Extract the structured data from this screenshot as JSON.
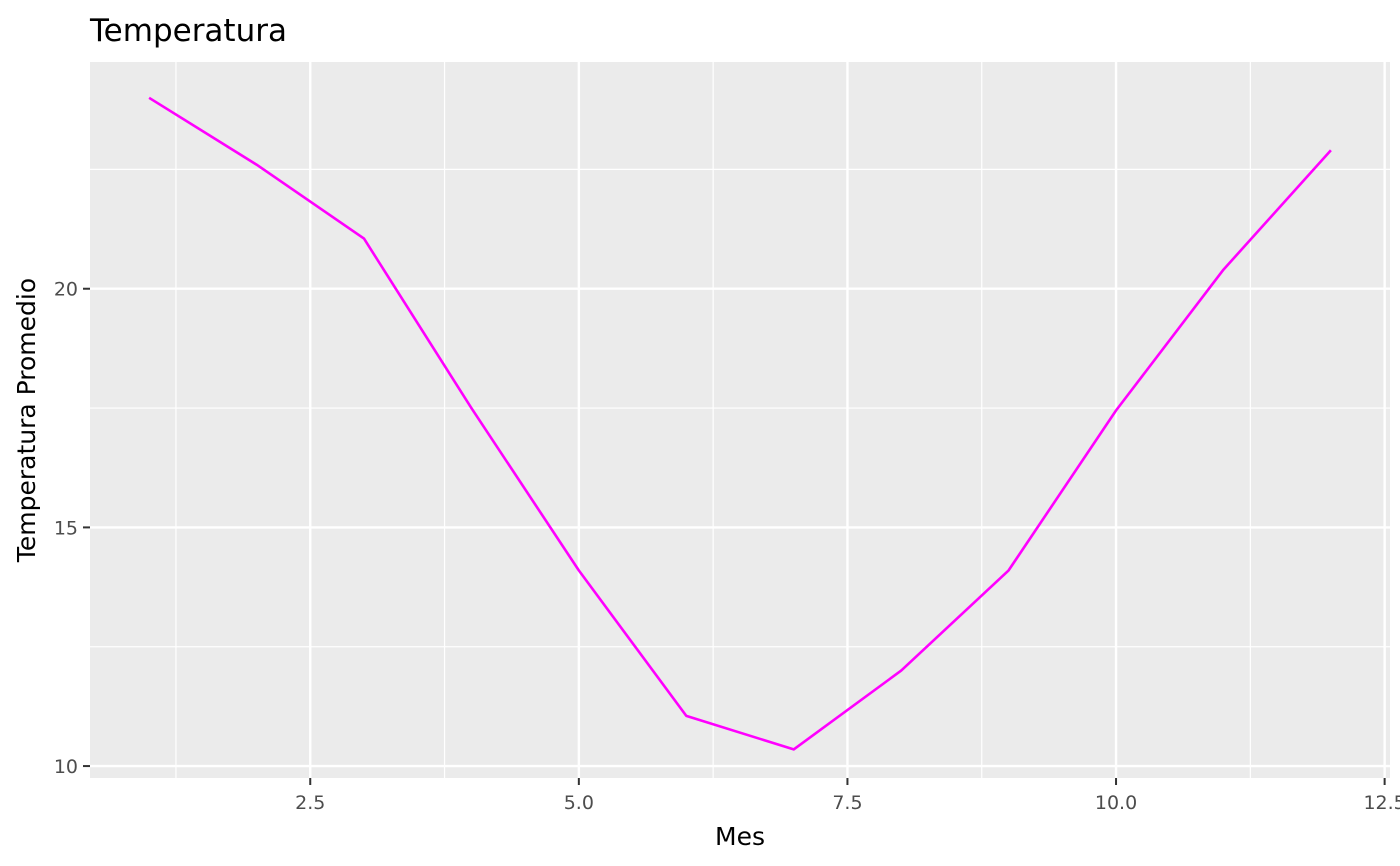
{
  "chart_data": {
    "type": "line",
    "title": "Temperatura",
    "xlabel": "Mes",
    "ylabel": "Temperatura Promedio",
    "x": [
      1,
      2,
      3,
      4,
      5,
      6,
      7,
      8,
      9,
      10,
      11,
      12
    ],
    "series": [
      {
        "values": [
          24.0,
          22.6,
          21.05,
          17.5,
          14.1,
          11.05,
          10.35,
          12.0,
          14.1,
          17.45,
          20.4,
          22.9
        ]
      }
    ],
    "xlim": [
      0.45,
      12.55
    ],
    "ylim": [
      9.75,
      24.75
    ],
    "x_ticks": [
      2.5,
      5.0,
      7.5,
      10.0,
      12.5
    ],
    "x_tick_labels": [
      "2.5",
      "5.0",
      "7.5",
      "10.0",
      "12.5"
    ],
    "y_ticks": [
      10,
      15,
      20
    ],
    "y_tick_labels": [
      "10",
      "15",
      "20"
    ],
    "grid": true,
    "line_color": "#FF00FF",
    "panel_color": "#EBEBEB",
    "grid_color": "#FFFFFF"
  }
}
